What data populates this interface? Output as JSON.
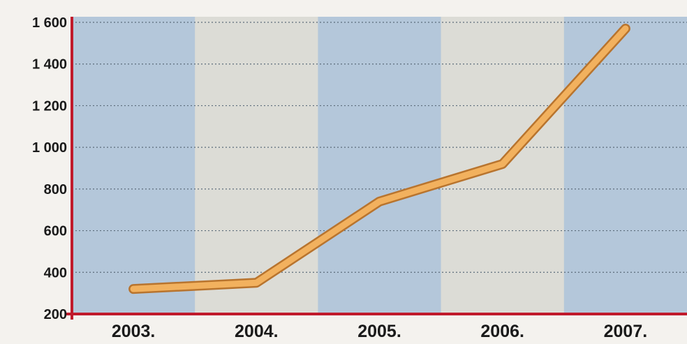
{
  "chart_data": {
    "type": "line",
    "title": "",
    "xlabel": "",
    "ylabel": "",
    "categories": [
      "2003.",
      "2004.",
      "2005.",
      "2006.",
      "2007."
    ],
    "series": [
      {
        "values": [
          320,
          350,
          740,
          920,
          1570
        ]
      }
    ],
    "ylim": [
      200,
      1600
    ],
    "yticks": [
      200,
      400,
      600,
      800,
      1000,
      1200,
      1400,
      1600
    ],
    "ytick_labels": [
      "200",
      "400",
      "600",
      "800",
      "1 000",
      "1 200",
      "1 400",
      "1 600"
    ],
    "grid": true,
    "legend": "none"
  },
  "colors": {
    "axis": "#c01a2c",
    "line": "#f2b15e",
    "line_outline": "#b8742e",
    "band_blue": "#b4c7da",
    "band_light": "#dcdcd6",
    "grid": "#5b6b7a"
  }
}
